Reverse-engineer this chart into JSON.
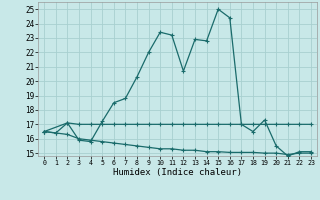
{
  "xlabel": "Humidex (Indice chaleur)",
  "xlim": [
    -0.5,
    23.5
  ],
  "ylim": [
    14.8,
    25.5
  ],
  "xticks": [
    0,
    1,
    2,
    3,
    4,
    5,
    6,
    7,
    8,
    9,
    10,
    11,
    12,
    13,
    14,
    15,
    16,
    17,
    18,
    19,
    20,
    21,
    22,
    23
  ],
  "yticks": [
    15,
    16,
    17,
    18,
    19,
    20,
    21,
    22,
    23,
    24,
    25
  ],
  "bg_color": "#c8e8e8",
  "grid_color": "#a8d0d0",
  "line_color": "#1a6b6b",
  "line1_x": [
    0,
    1,
    2,
    3,
    4,
    5,
    6,
    7,
    8,
    9,
    10,
    11,
    12,
    13,
    14,
    15,
    16,
    17,
    18,
    19,
    20,
    21,
    22,
    23
  ],
  "line1_y": [
    16.5,
    16.4,
    17.1,
    15.9,
    15.8,
    17.2,
    18.5,
    18.8,
    20.3,
    22.0,
    23.4,
    23.2,
    20.7,
    22.9,
    22.8,
    25.0,
    24.4,
    17.0,
    16.5,
    17.3,
    15.5,
    14.8,
    15.1,
    15.1
  ],
  "line2_x": [
    0,
    2,
    3,
    4,
    5,
    6,
    7,
    8,
    9,
    10,
    11,
    12,
    13,
    14,
    15,
    16,
    17,
    18,
    19,
    20,
    21,
    22,
    23
  ],
  "line2_y": [
    16.5,
    17.1,
    17.0,
    17.0,
    17.0,
    17.0,
    17.0,
    17.0,
    17.0,
    17.0,
    17.0,
    17.0,
    17.0,
    17.0,
    17.0,
    17.0,
    17.0,
    17.0,
    17.0,
    17.0,
    17.0,
    17.0,
    17.0
  ],
  "line3_x": [
    0,
    1,
    2,
    3,
    4,
    5,
    6,
    7,
    8,
    9,
    10,
    11,
    12,
    13,
    14,
    15,
    16,
    17,
    18,
    19,
    20,
    21,
    22,
    23
  ],
  "line3_y": [
    16.5,
    16.4,
    16.3,
    16.0,
    15.9,
    15.8,
    15.7,
    15.6,
    15.5,
    15.4,
    15.3,
    15.3,
    15.2,
    15.2,
    15.1,
    15.1,
    15.05,
    15.05,
    15.05,
    15.0,
    15.0,
    14.9,
    15.0,
    15.0
  ]
}
